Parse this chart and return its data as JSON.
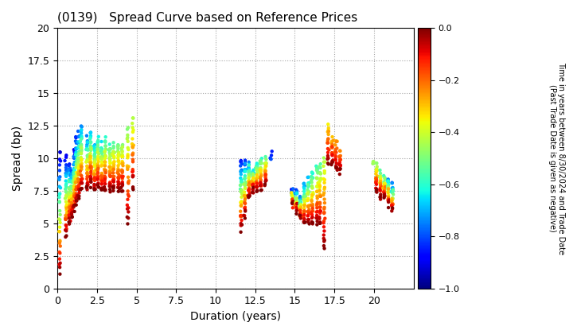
{
  "title": "(0139)   Spread Curve based on Reference Prices",
  "xlabel": "Duration (years)",
  "ylabel": "Spread (bp)",
  "xlim": [
    0,
    22.5
  ],
  "ylim": [
    0,
    20
  ],
  "xticks": [
    0,
    2.5,
    5.0,
    7.5,
    10.0,
    12.5,
    15.0,
    17.5,
    20.0
  ],
  "yticks": [
    0,
    2.5,
    5.0,
    7.5,
    10.0,
    12.5,
    15.0,
    17.5,
    20.0
  ],
  "cmap": "jet",
  "vmin": -1.0,
  "vmax": 0.0,
  "cticks": [
    0.0,
    -0.2,
    -0.4,
    -0.6,
    -0.8,
    -1.0
  ],
  "marker_size": 10,
  "bond_series": [
    {
      "dur": 0.15,
      "y_red": 1.2,
      "y_blue": 10.5,
      "t_min": -0.95,
      "t_max": 0.0,
      "n": 35
    },
    {
      "dur": 0.55,
      "y_red": 4.0,
      "y_blue": 10.0,
      "t_min": -0.9,
      "t_max": 0.0,
      "n": 40
    },
    {
      "dur": 0.75,
      "y_red": 5.0,
      "y_blue": 9.5,
      "t_min": -0.85,
      "t_max": 0.0,
      "n": 40
    },
    {
      "dur": 0.9,
      "y_red": 5.5,
      "y_blue": 9.0,
      "t_min": -0.8,
      "t_max": 0.0,
      "n": 40
    },
    {
      "dur": 1.05,
      "y_red": 6.0,
      "y_blue": 10.5,
      "t_min": -0.9,
      "t_max": 0.0,
      "n": 40
    },
    {
      "dur": 1.2,
      "y_red": 6.5,
      "y_blue": 11.5,
      "t_min": -0.85,
      "t_max": 0.0,
      "n": 40
    },
    {
      "dur": 1.35,
      "y_red": 7.0,
      "y_blue": 12.0,
      "t_min": -0.8,
      "t_max": 0.0,
      "n": 40
    },
    {
      "dur": 1.5,
      "y_red": 7.5,
      "y_blue": 12.5,
      "t_min": -0.75,
      "t_max": 0.0,
      "n": 40
    },
    {
      "dur": 1.9,
      "y_red": 7.5,
      "y_blue": 11.5,
      "t_min": -0.75,
      "t_max": 0.0,
      "n": 40
    },
    {
      "dur": 2.1,
      "y_red": 8.0,
      "y_blue": 12.0,
      "t_min": -0.7,
      "t_max": 0.0,
      "n": 40
    },
    {
      "dur": 2.35,
      "y_red": 7.5,
      "y_blue": 11.0,
      "t_min": -0.7,
      "t_max": 0.0,
      "n": 35
    },
    {
      "dur": 2.55,
      "y_red": 7.8,
      "y_blue": 11.5,
      "t_min": -0.65,
      "t_max": 0.0,
      "n": 35
    },
    {
      "dur": 2.8,
      "y_red": 7.5,
      "y_blue": 11.0,
      "t_min": -0.65,
      "t_max": 0.0,
      "n": 35
    },
    {
      "dur": 3.0,
      "y_red": 7.5,
      "y_blue": 11.5,
      "t_min": -0.6,
      "t_max": 0.0,
      "n": 35
    },
    {
      "dur": 3.3,
      "y_red": 7.5,
      "y_blue": 11.0,
      "t_min": -0.6,
      "t_max": 0.0,
      "n": 35
    },
    {
      "dur": 3.55,
      "y_red": 7.5,
      "y_blue": 11.0,
      "t_min": -0.55,
      "t_max": 0.0,
      "n": 35
    },
    {
      "dur": 3.85,
      "y_red": 7.5,
      "y_blue": 11.0,
      "t_min": -0.55,
      "t_max": 0.0,
      "n": 35
    },
    {
      "dur": 4.1,
      "y_red": 7.5,
      "y_blue": 11.0,
      "t_min": -0.5,
      "t_max": 0.0,
      "n": 35
    },
    {
      "dur": 4.45,
      "y_red": 5.0,
      "y_blue": 12.5,
      "t_min": -0.5,
      "t_max": 0.0,
      "n": 30
    },
    {
      "dur": 4.75,
      "y_red": 7.5,
      "y_blue": 13.0,
      "t_min": -0.45,
      "t_max": 0.0,
      "n": 25
    },
    {
      "dur": 11.6,
      "y_red": 4.5,
      "y_blue": 10.0,
      "t_min": -0.9,
      "t_max": 0.0,
      "n": 35
    },
    {
      "dur": 11.85,
      "y_red": 5.5,
      "y_blue": 10.0,
      "t_min": -0.85,
      "t_max": 0.0,
      "n": 35
    },
    {
      "dur": 12.1,
      "y_red": 7.0,
      "y_blue": 9.5,
      "t_min": -0.75,
      "t_max": 0.0,
      "n": 35
    },
    {
      "dur": 12.35,
      "y_red": 7.5,
      "y_blue": 9.0,
      "t_min": -0.7,
      "t_max": 0.0,
      "n": 35
    },
    {
      "dur": 12.6,
      "y_red": 7.5,
      "y_blue": 9.5,
      "t_min": -0.65,
      "t_max": 0.0,
      "n": 30
    },
    {
      "dur": 12.85,
      "y_red": 7.5,
      "y_blue": 10.0,
      "t_min": -0.6,
      "t_max": 0.0,
      "n": 30
    },
    {
      "dur": 13.15,
      "y_red": 8.0,
      "y_blue": 10.0,
      "t_min": -0.55,
      "t_max": 0.0,
      "n": 25
    },
    {
      "dur": 13.5,
      "y_red": 10.0,
      "y_blue": 10.2,
      "t_min": -0.85,
      "t_max": -0.8,
      "n": 5
    },
    {
      "dur": 14.85,
      "y_red": 6.5,
      "y_blue": 7.5,
      "t_min": -0.9,
      "t_max": 0.0,
      "n": 30
    },
    {
      "dur": 15.1,
      "y_red": 6.0,
      "y_blue": 7.5,
      "t_min": -0.85,
      "t_max": 0.0,
      "n": 30
    },
    {
      "dur": 15.35,
      "y_red": 5.5,
      "y_blue": 7.0,
      "t_min": -0.8,
      "t_max": 0.0,
      "n": 30
    },
    {
      "dur": 15.6,
      "y_red": 5.0,
      "y_blue": 8.0,
      "t_min": -0.75,
      "t_max": 0.0,
      "n": 30
    },
    {
      "dur": 15.85,
      "y_red": 5.0,
      "y_blue": 8.5,
      "t_min": -0.7,
      "t_max": 0.0,
      "n": 30
    },
    {
      "dur": 16.1,
      "y_red": 5.0,
      "y_blue": 9.0,
      "t_min": -0.65,
      "t_max": 0.0,
      "n": 30
    },
    {
      "dur": 16.4,
      "y_red": 5.0,
      "y_blue": 9.5,
      "t_min": -0.6,
      "t_max": 0.0,
      "n": 30
    },
    {
      "dur": 16.6,
      "y_red": 5.0,
      "y_blue": 9.5,
      "t_min": -0.55,
      "t_max": 0.0,
      "n": 30
    },
    {
      "dur": 16.85,
      "y_red": 3.0,
      "y_blue": 10.0,
      "t_min": -0.45,
      "t_max": 0.0,
      "n": 30
    },
    {
      "dur": 17.1,
      "y_red": 9.5,
      "y_blue": 12.5,
      "t_min": -0.35,
      "t_max": 0.0,
      "n": 20
    },
    {
      "dur": 17.35,
      "y_red": 9.5,
      "y_blue": 11.5,
      "t_min": -0.3,
      "t_max": 0.0,
      "n": 20
    },
    {
      "dur": 17.6,
      "y_red": 9.0,
      "y_blue": 11.5,
      "t_min": -0.3,
      "t_max": 0.0,
      "n": 20
    },
    {
      "dur": 17.85,
      "y_red": 9.0,
      "y_blue": 10.5,
      "t_min": -0.25,
      "t_max": 0.0,
      "n": 15
    },
    {
      "dur": 19.95,
      "y_red": 9.5,
      "y_blue": 9.8,
      "t_min": -0.5,
      "t_max": -0.45,
      "n": 5
    },
    {
      "dur": 20.15,
      "y_red": 7.5,
      "y_blue": 9.5,
      "t_min": -0.5,
      "t_max": 0.0,
      "n": 25
    },
    {
      "dur": 20.4,
      "y_red": 7.0,
      "y_blue": 9.0,
      "t_min": -0.55,
      "t_max": 0.0,
      "n": 25
    },
    {
      "dur": 20.65,
      "y_red": 7.0,
      "y_blue": 8.5,
      "t_min": -0.6,
      "t_max": 0.0,
      "n": 25
    },
    {
      "dur": 20.9,
      "y_red": 6.5,
      "y_blue": 8.5,
      "t_min": -0.75,
      "t_max": 0.0,
      "n": 25
    },
    {
      "dur": 21.15,
      "y_red": 6.0,
      "y_blue": 8.0,
      "t_min": -0.8,
      "t_max": 0.0,
      "n": 25
    }
  ]
}
